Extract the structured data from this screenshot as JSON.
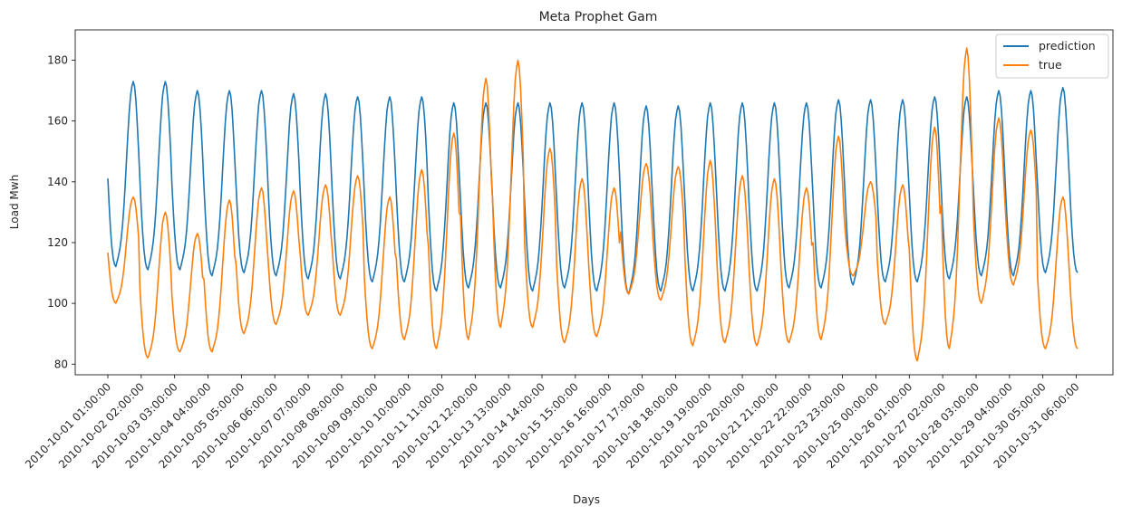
{
  "chart_data": {
    "type": "line",
    "title": "Meta Prophet Gam",
    "xlabel": "Days",
    "ylabel": "Load Mwh",
    "ylim": [
      76.5,
      190
    ],
    "yticks": [
      80,
      100,
      120,
      140,
      160,
      180
    ],
    "grid": false,
    "legend": "top-right",
    "x_start": "2010-10-01 00:00:00",
    "x_end": "2010-10-31 06:00:00",
    "xtick_labels": [
      "2010-10-01 01:00:00",
      "2010-10-02 02:00:00",
      "2010-10-03 03:00:00",
      "2010-10-04 04:00:00",
      "2010-10-05 05:00:00",
      "2010-10-06 06:00:00",
      "2010-10-07 07:00:00",
      "2010-10-08 08:00:00",
      "2010-10-09 09:00:00",
      "2010-10-10 10:00:00",
      "2010-10-11 11:00:00",
      "2010-10-12 12:00:00",
      "2010-10-13 13:00:00",
      "2010-10-14 14:00:00",
      "2010-10-15 15:00:00",
      "2010-10-16 16:00:00",
      "2010-10-17 17:00:00",
      "2010-10-18 18:00:00",
      "2010-10-19 19:00:00",
      "2010-10-20 20:00:00",
      "2010-10-21 21:00:00",
      "2010-10-22 22:00:00",
      "2010-10-23 23:00:00",
      "2010-10-25 00:00:00",
      "2010-10-26 01:00:00",
      "2010-10-27 02:00:00",
      "2010-10-28 03:00:00",
      "2010-10-29 04:00:00",
      "2010-10-30 05:00:00",
      "2010-10-31 06:00:00"
    ],
    "xtick_times": [
      "2010-10-01 00:00:00",
      "2010-10-02 01:00:00",
      "2010-10-03 02:00:00",
      "2010-10-04 03:00:00",
      "2010-10-05 04:00:00",
      "2010-10-06 05:00:00",
      "2010-10-07 06:00:00",
      "2010-10-08 07:00:00",
      "2010-10-09 08:00:00",
      "2010-10-10 09:00:00",
      "2010-10-11 10:00:00",
      "2010-10-12 11:00:00",
      "2010-10-13 12:00:00",
      "2010-10-14 13:00:00",
      "2010-10-15 14:00:00",
      "2010-10-16 15:00:00",
      "2010-10-17 16:00:00",
      "2010-10-18 17:00:00",
      "2010-10-19 18:00:00",
      "2010-10-20 19:00:00",
      "2010-10-21 20:00:00",
      "2010-10-22 21:00:00",
      "2010-10-23 22:00:00",
      "2010-10-24 23:00:00",
      "2010-10-26 00:00:00",
      "2010-10-27 01:00:00",
      "2010-10-28 02:00:00",
      "2010-10-29 03:00:00",
      "2010-10-30 04:00:00",
      "2010-10-31 05:00:00"
    ],
    "series": [
      {
        "name": "prediction",
        "color": "#1f77b4",
        "daily_min": [
          112,
          111,
          111,
          109,
          110,
          109,
          108,
          108,
          107,
          107,
          104,
          105,
          105,
          104,
          105,
          104,
          103,
          104,
          104,
          104,
          104,
          105,
          105,
          106,
          107,
          107,
          108,
          109,
          109,
          110
        ],
        "daily_max": [
          173,
          173,
          170,
          170,
          170,
          169,
          169,
          168,
          168,
          168,
          166,
          166,
          166,
          166,
          166,
          166,
          165,
          165,
          166,
          166,
          166,
          166,
          167,
          167,
          167,
          168,
          168,
          170,
          170,
          171
        ]
      },
      {
        "name": "true",
        "color": "#ff7f0e",
        "daily_min": [
          100,
          82,
          84,
          84,
          90,
          93,
          96,
          96,
          85,
          88,
          85,
          88,
          92,
          92,
          87,
          89,
          103,
          101,
          86,
          87,
          86,
          87,
          88,
          109,
          93,
          81,
          85,
          100,
          106,
          85
        ],
        "daily_max": [
          135,
          130,
          123,
          134,
          138,
          137,
          139,
          142,
          135,
          144,
          156,
          174,
          180,
          151,
          141,
          138,
          146,
          145,
          147,
          142,
          141,
          138,
          155,
          140,
          139,
          158,
          184,
          161,
          157,
          135
        ]
      }
    ]
  }
}
